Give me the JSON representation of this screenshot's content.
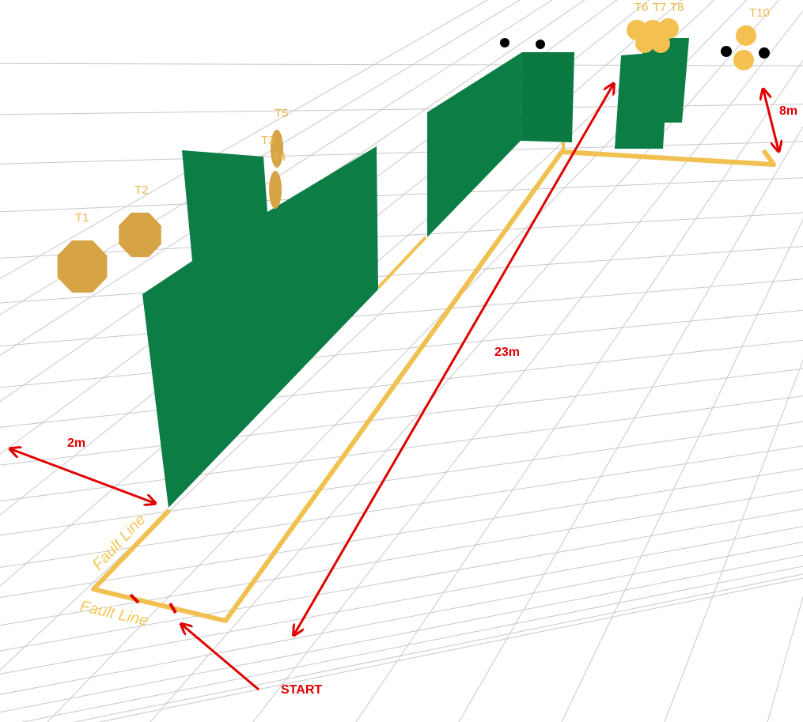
{
  "targets": [
    "T1",
    "T2",
    "T3",
    "T4",
    "T5",
    "T6",
    "T7",
    "T8",
    "T10"
  ],
  "measurements": {
    "side": "2m",
    "length": "23m",
    "end": "8m"
  },
  "start": "START",
  "fault_lines": [
    "Fault Line",
    "Fault Line"
  ]
}
